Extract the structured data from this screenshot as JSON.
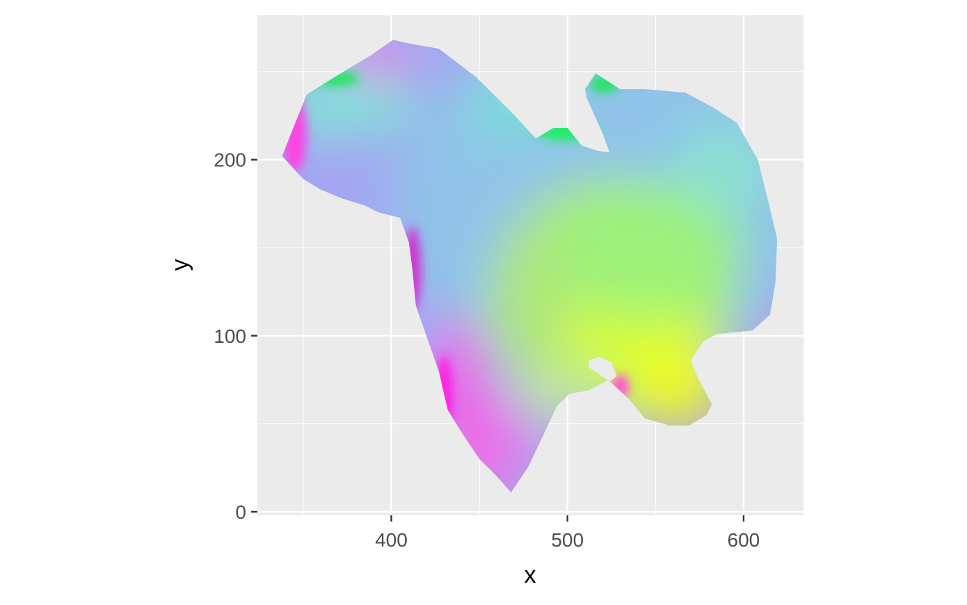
{
  "chart_data": {
    "type": "heatmap",
    "title": "",
    "xlabel": "x",
    "ylabel": "y",
    "xlim": [
      324,
      634
    ],
    "ylim": [
      -2,
      282
    ],
    "x_ticks": [
      400,
      500,
      600
    ],
    "y_ticks": [
      0,
      100,
      200
    ],
    "x_tick_labels": [
      "400",
      "500",
      "600"
    ],
    "y_tick_labels": [
      "0",
      "100",
      "200"
    ],
    "x_minor_gridlines": [
      350,
      450,
      550
    ],
    "y_minor_gridlines": [
      50,
      150,
      250
    ],
    "grid": true,
    "panel_background": "#ebebeb",
    "gridline_color": "#ffffff",
    "fill_encoding": "per-pixel RGB color",
    "region_outline": [
      [
        338,
        202
      ],
      [
        352,
        237
      ],
      [
        368,
        247
      ],
      [
        388,
        259
      ],
      [
        401,
        268
      ],
      [
        410,
        266
      ],
      [
        427,
        263
      ],
      [
        448,
        247
      ],
      [
        470,
        225
      ],
      [
        482,
        212
      ],
      [
        492,
        218
      ],
      [
        500,
        218
      ],
      [
        508,
        208
      ],
      [
        517,
        205
      ],
      [
        524,
        204
      ],
      [
        520,
        215
      ],
      [
        511,
        235
      ],
      [
        510,
        240
      ],
      [
        516,
        249
      ],
      [
        530,
        240
      ],
      [
        544,
        240
      ],
      [
        567,
        238
      ],
      [
        582,
        230
      ],
      [
        596,
        221
      ],
      [
        608,
        200
      ],
      [
        614,
        176
      ],
      [
        619,
        155
      ],
      [
        618,
        130
      ],
      [
        615,
        112
      ],
      [
        605,
        103
      ],
      [
        595,
        102
      ],
      [
        585,
        101
      ],
      [
        577,
        97
      ],
      [
        570,
        86
      ],
      [
        574,
        76
      ],
      [
        582,
        61
      ],
      [
        579,
        55
      ],
      [
        569,
        49
      ],
      [
        558,
        49
      ],
      [
        544,
        53
      ],
      [
        535,
        64
      ],
      [
        523,
        75
      ],
      [
        512,
        69
      ],
      [
        501,
        67
      ],
      [
        494,
        60
      ],
      [
        486,
        43
      ],
      [
        478,
        26
      ],
      [
        468,
        11
      ],
      [
        460,
        20
      ],
      [
        450,
        30
      ],
      [
        440,
        45
      ],
      [
        432,
        58
      ],
      [
        427,
        80
      ],
      [
        422,
        94
      ],
      [
        414,
        117
      ],
      [
        412,
        138
      ],
      [
        410,
        153
      ],
      [
        405,
        167
      ],
      [
        393,
        170
      ],
      [
        385,
        174
      ],
      [
        372,
        178
      ],
      [
        360,
        183
      ],
      [
        350,
        189
      ],
      [
        338,
        202
      ]
    ],
    "region_hole": [
      [
        512,
        82
      ],
      [
        518,
        78
      ],
      [
        524,
        74
      ],
      [
        528,
        77
      ],
      [
        525,
        85
      ],
      [
        518,
        88
      ],
      [
        512,
        86
      ]
    ],
    "color_zones": [
      {
        "x": 478,
        "y": 160,
        "rx": 150,
        "ry": 110,
        "color": "#a3a5f2"
      },
      {
        "x": 520,
        "y": 175,
        "rx": 120,
        "ry": 95,
        "color": "#8dc6e8"
      },
      {
        "x": 525,
        "y": 120,
        "rx": 70,
        "ry": 70,
        "color": "#b2ea6e"
      },
      {
        "x": 538,
        "y": 102,
        "rx": 40,
        "ry": 30,
        "color": "#dcff2a"
      },
      {
        "x": 562,
        "y": 72,
        "rx": 26,
        "ry": 24,
        "color": "#f3fc19"
      },
      {
        "x": 545,
        "y": 148,
        "rx": 55,
        "ry": 40,
        "color": "#9cf27a"
      },
      {
        "x": 453,
        "y": 37,
        "rx": 25,
        "ry": 28,
        "color": "#f26ae8"
      },
      {
        "x": 438,
        "y": 75,
        "rx": 13,
        "ry": 35,
        "color": "#ff48e6"
      },
      {
        "x": 390,
        "y": 253,
        "rx": 14,
        "ry": 14,
        "color": "#ff4fea"
      },
      {
        "x": 372,
        "y": 232,
        "rx": 42,
        "ry": 18,
        "color": "#7ae8d5"
      },
      {
        "x": 470,
        "y": 232,
        "rx": 28,
        "ry": 18,
        "color": "#74e1d4"
      },
      {
        "x": 588,
        "y": 195,
        "rx": 26,
        "ry": 25,
        "color": "#8be4d0"
      },
      {
        "x": 495,
        "y": 68,
        "rx": 25,
        "ry": 15,
        "color": "#c2e8a4"
      }
    ],
    "edge_zones": [
      {
        "x": 345,
        "y": 215,
        "rx": 7,
        "ry": 22,
        "color": "#ff3fe4"
      },
      {
        "x": 430,
        "y": 65,
        "rx": 5,
        "ry": 24,
        "color": "#ff1fe1"
      },
      {
        "x": 412,
        "y": 138,
        "rx": 5,
        "ry": 24,
        "color": "#d22fd0"
      },
      {
        "x": 500,
        "y": 216,
        "rx": 18,
        "ry": 5,
        "color": "#17f05d"
      },
      {
        "x": 368,
        "y": 246,
        "rx": 14,
        "ry": 4,
        "color": "#13ea55"
      },
      {
        "x": 521,
        "y": 243,
        "rx": 8,
        "ry": 5,
        "color": "#20e85a"
      },
      {
        "x": 530,
        "y": 71,
        "rx": 5,
        "ry": 7,
        "color": "#ff4fdb"
      }
    ]
  }
}
